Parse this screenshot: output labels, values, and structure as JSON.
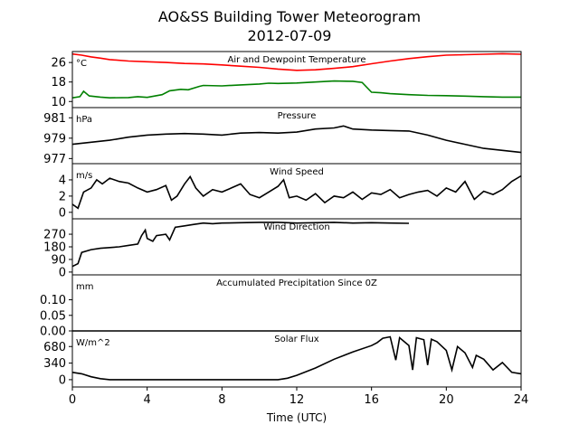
{
  "title": "AO&SS Building Tower Meteorogram",
  "subtitle": "2012-07-09",
  "chart_data": {
    "type": "line",
    "xlabel": "Time (UTC)",
    "xlim": [
      0,
      24
    ],
    "xticks": [
      0,
      4,
      8,
      12,
      16,
      20,
      24
    ],
    "panels": [
      {
        "id": "temperature",
        "title": "Air and Dewpoint Temperature",
        "unit": "°C",
        "ylim": [
          7.5,
          30.5
        ],
        "yticks": [
          10,
          18,
          26
        ],
        "series": [
          {
            "color": "#ff0000",
            "points": [
              [
                0,
                29.5
              ],
              [
                0.5,
                29.0
              ],
              [
                1,
                28.3
              ],
              [
                1.5,
                27.8
              ],
              [
                2,
                27.2
              ],
              [
                3,
                26.6
              ],
              [
                4,
                26.3
              ],
              [
                5,
                26.0
              ],
              [
                6,
                25.6
              ],
              [
                7,
                25.4
              ],
              [
                8,
                25.0
              ],
              [
                9,
                24.5
              ],
              [
                10,
                24.0
              ],
              [
                11,
                23.3
              ],
              [
                12,
                22.8
              ],
              [
                13,
                23.0
              ],
              [
                14,
                23.6
              ],
              [
                15,
                24.3
              ],
              [
                16,
                25.5
              ],
              [
                17,
                26.6
              ],
              [
                18,
                27.6
              ],
              [
                19,
                28.4
              ],
              [
                20,
                29.0
              ],
              [
                21,
                29.2
              ],
              [
                22,
                29.4
              ],
              [
                23,
                29.6
              ],
              [
                24,
                29.4
              ]
            ]
          },
          {
            "color": "#008000",
            "points": [
              [
                0,
                11.5
              ],
              [
                0.4,
                12.0
              ],
              [
                0.6,
                14.2
              ],
              [
                0.9,
                12.3
              ],
              [
                1.5,
                11.8
              ],
              [
                2,
                11.5
              ],
              [
                3,
                11.6
              ],
              [
                3.5,
                12.0
              ],
              [
                4,
                11.7
              ],
              [
                4.8,
                12.8
              ],
              [
                5.2,
                14.4
              ],
              [
                5.8,
                15.0
              ],
              [
                6.2,
                14.8
              ],
              [
                6.8,
                16.2
              ],
              [
                7,
                16.6
              ],
              [
                8,
                16.4
              ],
              [
                9,
                16.8
              ],
              [
                10,
                17.2
              ],
              [
                10.5,
                17.5
              ],
              [
                11,
                17.4
              ],
              [
                12,
                17.6
              ],
              [
                13,
                18.0
              ],
              [
                14,
                18.4
              ],
              [
                15,
                18.3
              ],
              [
                15.5,
                17.8
              ],
              [
                16,
                13.8
              ],
              [
                16.5,
                13.6
              ],
              [
                17,
                13.2
              ],
              [
                18,
                12.8
              ],
              [
                19,
                12.5
              ],
              [
                20,
                12.4
              ],
              [
                21,
                12.2
              ],
              [
                22,
                12.0
              ],
              [
                23,
                11.8
              ],
              [
                24,
                11.8
              ]
            ]
          }
        ]
      },
      {
        "id": "pressure",
        "title": "Pressure",
        "unit": "hPa",
        "ylim": [
          976.5,
          982.0
        ],
        "yticks": [
          977,
          979,
          981
        ],
        "series": [
          {
            "color": "#000000",
            "points": [
              [
                0,
                978.4
              ],
              [
                1,
                978.6
              ],
              [
                2,
                978.8
              ],
              [
                3,
                979.1
              ],
              [
                4,
                979.3
              ],
              [
                5,
                979.4
              ],
              [
                6,
                979.45
              ],
              [
                7,
                979.4
              ],
              [
                8,
                979.3
              ],
              [
                9,
                979.5
              ],
              [
                10,
                979.55
              ],
              [
                11,
                979.5
              ],
              [
                12,
                979.6
              ],
              [
                13,
                979.9
              ],
              [
                14,
                980.0
              ],
              [
                14.5,
                980.2
              ],
              [
                15,
                979.9
              ],
              [
                16,
                979.8
              ],
              [
                17,
                979.75
              ],
              [
                18,
                979.7
              ],
              [
                19,
                979.3
              ],
              [
                20,
                978.8
              ],
              [
                21,
                978.4
              ],
              [
                22,
                978.0
              ],
              [
                23,
                977.8
              ],
              [
                24,
                977.6
              ]
            ]
          }
        ]
      },
      {
        "id": "wind_speed",
        "title": "Wind Speed",
        "unit": "m/s",
        "ylim": [
          -0.8,
          6.0
        ],
        "yticks": [
          0,
          2,
          4
        ],
        "series": [
          {
            "color": "#000000",
            "points": [
              [
                0,
                1.0
              ],
              [
                0.3,
                0.5
              ],
              [
                0.6,
                2.5
              ],
              [
                1,
                3.0
              ],
              [
                1.3,
                4.0
              ],
              [
                1.6,
                3.5
              ],
              [
                2,
                4.2
              ],
              [
                2.5,
                3.8
              ],
              [
                3,
                3.6
              ],
              [
                3.5,
                3.0
              ],
              [
                4,
                2.5
              ],
              [
                4.5,
                2.8
              ],
              [
                5,
                3.3
              ],
              [
                5.3,
                1.5
              ],
              [
                5.6,
                2.0
              ],
              [
                6,
                3.5
              ],
              [
                6.3,
                4.4
              ],
              [
                6.6,
                3.0
              ],
              [
                7,
                2.0
              ],
              [
                7.5,
                2.8
              ],
              [
                8,
                2.5
              ],
              [
                8.5,
                3.0
              ],
              [
                9,
                3.5
              ],
              [
                9.5,
                2.2
              ],
              [
                10,
                1.8
              ],
              [
                10.5,
                2.5
              ],
              [
                11,
                3.2
              ],
              [
                11.3,
                4.0
              ],
              [
                11.6,
                1.8
              ],
              [
                12,
                2.0
              ],
              [
                12.5,
                1.5
              ],
              [
                13,
                2.3
              ],
              [
                13.5,
                1.2
              ],
              [
                14,
                2.0
              ],
              [
                14.5,
                1.8
              ],
              [
                15,
                2.5
              ],
              [
                15.5,
                1.6
              ],
              [
                16,
                2.4
              ],
              [
                16.5,
                2.2
              ],
              [
                17,
                2.8
              ],
              [
                17.5,
                1.8
              ],
              [
                18,
                2.2
              ],
              [
                18.5,
                2.5
              ],
              [
                19,
                2.7
              ],
              [
                19.5,
                2.0
              ],
              [
                20,
                3.0
              ],
              [
                20.5,
                2.5
              ],
              [
                21,
                3.8
              ],
              [
                21.5,
                1.6
              ],
              [
                22,
                2.6
              ],
              [
                22.5,
                2.2
              ],
              [
                23,
                2.8
              ],
              [
                23.5,
                3.8
              ],
              [
                24,
                4.5
              ]
            ]
          }
        ]
      },
      {
        "id": "wind_direction",
        "title": "Wind Direction",
        "unit": "",
        "ylim": [
          -20,
          380
        ],
        "yticks": [
          0,
          90,
          180,
          270
        ],
        "series": [
          {
            "color": "#000000",
            "points": [
              [
                0,
                40
              ],
              [
                0.3,
                60
              ],
              [
                0.5,
                140
              ],
              [
                1,
                160
              ],
              [
                1.5,
                170
              ],
              [
                2,
                175
              ],
              [
                2.5,
                180
              ],
              [
                3,
                190
              ],
              [
                3.5,
                200
              ],
              [
                3.7,
                260
              ],
              [
                3.9,
                300
              ],
              [
                4,
                240
              ],
              [
                4.3,
                220
              ],
              [
                4.5,
                260
              ],
              [
                5,
                270
              ],
              [
                5.2,
                230
              ],
              [
                5.5,
                320
              ],
              [
                6,
                330
              ],
              [
                6.5,
                340
              ],
              [
                7,
                350
              ],
              [
                7.5,
                345
              ],
              [
                8,
                350
              ],
              [
                9,
                352
              ],
              [
                10,
                355
              ],
              [
                11,
                355
              ],
              [
                12,
                350
              ],
              [
                13,
                352
              ],
              [
                14,
                355
              ],
              [
                15,
                350
              ],
              [
                16,
                352
              ],
              [
                17,
                350
              ],
              [
                18,
                348
              ]
            ]
          }
        ]
      },
      {
        "id": "precipitation",
        "title": "Accumulated Precipitation Since 0Z",
        "unit": "mm",
        "ylim": [
          0,
          0.18
        ],
        "yticks": [
          0.0,
          0.05,
          0.1
        ],
        "series": [
          {
            "color": "#000000",
            "points": [
              [
                0,
                0
              ],
              [
                24,
                0
              ]
            ]
          }
        ]
      },
      {
        "id": "solar_flux",
        "title": "Solar Flux",
        "unit": "W/m^2",
        "ylim": [
          -150,
          1000
        ],
        "yticks": [
          0,
          340,
          680
        ],
        "series": [
          {
            "color": "#000000",
            "points": [
              [
                0,
                150
              ],
              [
                0.5,
                120
              ],
              [
                1,
                60
              ],
              [
                1.5,
                20
              ],
              [
                2,
                0
              ],
              [
                4,
                0
              ],
              [
                6,
                0
              ],
              [
                8,
                0
              ],
              [
                10,
                0
              ],
              [
                11,
                0
              ],
              [
                11.5,
                30
              ],
              [
                12,
                90
              ],
              [
                13,
                240
              ],
              [
                14,
                420
              ],
              [
                15,
                570
              ],
              [
                16,
                700
              ],
              [
                16.3,
                760
              ],
              [
                16.6,
                850
              ],
              [
                17,
                880
              ],
              [
                17.3,
                400
              ],
              [
                17.5,
                860
              ],
              [
                18,
                700
              ],
              [
                18.2,
                200
              ],
              [
                18.4,
                860
              ],
              [
                18.8,
                820
              ],
              [
                19,
                300
              ],
              [
                19.2,
                830
              ],
              [
                19.5,
                780
              ],
              [
                20,
                600
              ],
              [
                20.3,
                200
              ],
              [
                20.6,
                680
              ],
              [
                21,
                550
              ],
              [
                21.4,
                250
              ],
              [
                21.6,
                500
              ],
              [
                22,
                420
              ],
              [
                22.5,
                200
              ],
              [
                23,
                350
              ],
              [
                23.5,
                150
              ],
              [
                24,
                120
              ]
            ]
          }
        ]
      }
    ]
  }
}
